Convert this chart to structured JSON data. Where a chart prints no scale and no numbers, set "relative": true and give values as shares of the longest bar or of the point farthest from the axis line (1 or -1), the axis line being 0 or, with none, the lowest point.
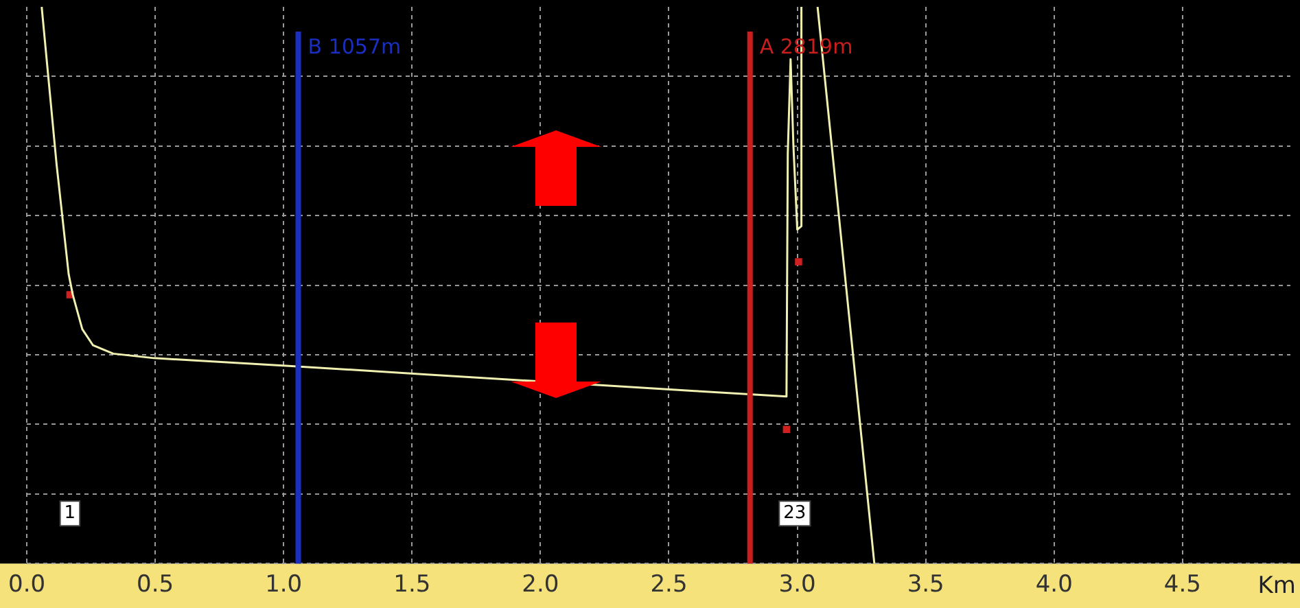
{
  "chart_data": {
    "type": "line",
    "xlabel": "Km",
    "relative": true,
    "grid": true,
    "legend": false,
    "xlim": [
      0,
      4.92
    ],
    "xticks": [
      {
        "value": 0,
        "label": "0.0"
      },
      0.5,
      {
        "value": 1,
        "label": "1.0"
      },
      1.5,
      {
        "value": 2,
        "label": "2.0"
      },
      2.5,
      {
        "value": 3,
        "label": "3.0"
      },
      3.5,
      {
        "value": 4,
        "label": "4.0"
      },
      4.5
    ],
    "series": [
      {
        "color": "#f0f0b0",
        "marker": "none",
        "line_style": "solid",
        "x": [
          0.058,
          0.116,
          0.163,
          0.179,
          0.216,
          0.258,
          0.337,
          0.495,
          1.02,
          1.547,
          2.6,
          2.958,
          2.963,
          2.974,
          2.985,
          3.0,
          3.016,
          3.016
        ],
        "values": [
          1.0,
          0.717,
          0.52,
          0.483,
          0.421,
          0.392,
          0.377,
          0.369,
          0.355,
          0.34,
          0.31,
          0.3,
          0.736,
          0.906,
          0.75,
          0.6,
          0.606,
          1.0
        ]
      },
      {
        "color": "#f0f0b0",
        "marker": "none",
        "line_style": "solid",
        "x": [
          3.079,
          3.3
        ],
        "values": [
          1.0,
          0.0
        ]
      },
      {
        "type": "scatter",
        "color": "#d02020",
        "marker": "square",
        "x": [
          0.168,
          2.958,
          3.005
        ],
        "values": [
          0.483,
          0.241,
          0.542
        ]
      }
    ],
    "ref_lines": [
      {
        "axis": "x",
        "value": 1.057,
        "label": "B 1057m",
        "color": "#1a2ec0"
      },
      {
        "axis": "x",
        "value": 2.816,
        "label": "A 2819m",
        "color": "#c81e1e"
      }
    ],
    "annotations": [
      {
        "text": "1",
        "x": 0.168,
        "y": 0.09
      },
      {
        "text": "23",
        "x": 2.99,
        "y": 0.09
      }
    ]
  }
}
